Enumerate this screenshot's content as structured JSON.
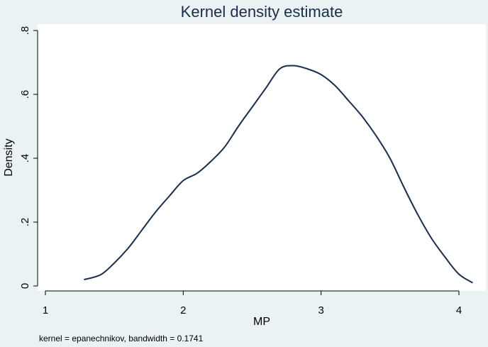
{
  "chart_data": {
    "type": "line",
    "title": "Kernel density estimate",
    "xlabel": "MP",
    "ylabel": "Density",
    "note": "kernel = epanechnikov, bandwidth = 0.1741",
    "xlim": [
      1,
      4.1
    ],
    "ylim": [
      0,
      0.8
    ],
    "x_ticks": [
      1,
      2,
      3,
      4
    ],
    "x_tick_labels": [
      "1",
      "2",
      "3",
      "4"
    ],
    "y_ticks": [
      0,
      0.2,
      0.4,
      0.6,
      0.8
    ],
    "y_tick_labels": [
      "0",
      ".2",
      ".4",
      ".6",
      ".8"
    ],
    "grid": false,
    "colors": {
      "line": "#1a2e4a",
      "plot_bg": "#ffffff",
      "figure_bg": "#eaf2f3"
    },
    "series": [
      {
        "x": [
          1.28,
          1.4,
          1.5,
          1.6,
          1.7,
          1.8,
          1.9,
          2.0,
          2.1,
          2.2,
          2.3,
          2.4,
          2.5,
          2.6,
          2.7,
          2.8,
          2.9,
          3.0,
          3.1,
          3.2,
          3.3,
          3.4,
          3.5,
          3.6,
          3.7,
          3.8,
          3.9,
          4.0,
          4.1
        ],
        "y": [
          0.02,
          0.035,
          0.072,
          0.118,
          0.175,
          0.232,
          0.282,
          0.33,
          0.353,
          0.39,
          0.435,
          0.5,
          0.56,
          0.62,
          0.68,
          0.69,
          0.68,
          0.662,
          0.628,
          0.58,
          0.53,
          0.47,
          0.4,
          0.31,
          0.225,
          0.15,
          0.09,
          0.037,
          0.01
        ]
      }
    ]
  }
}
